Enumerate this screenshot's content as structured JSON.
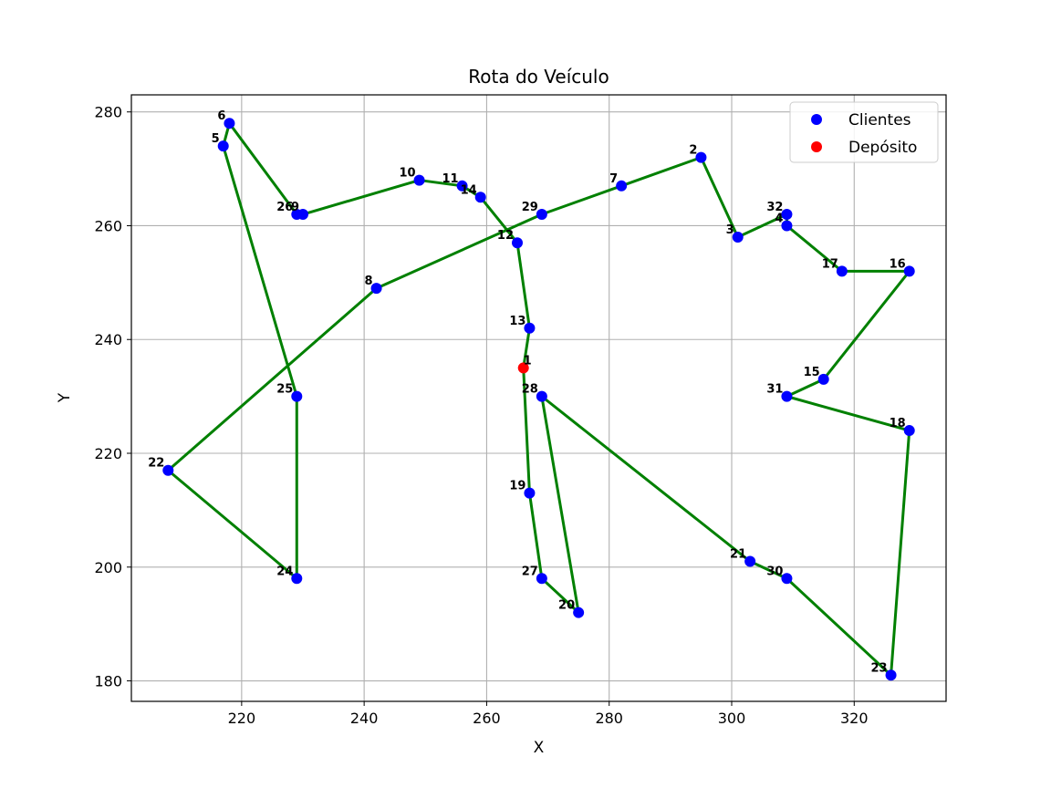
{
  "chart_data": {
    "type": "scatter",
    "title": "Rota do Veículo",
    "xlabel": "X",
    "ylabel": "Y",
    "xlim": [
      202,
      335
    ],
    "ylim": [
      176.4,
      283
    ],
    "xticks": [
      220,
      240,
      260,
      280,
      300,
      320
    ],
    "yticks": [
      180,
      200,
      220,
      240,
      260,
      280
    ],
    "grid": true,
    "legend_position": "top-right",
    "colors": {
      "clientes": "#0000ff",
      "deposito": "#ff0000",
      "route": "#008000",
      "grid": "#b0b0b0"
    },
    "legend": [
      {
        "label": "Clientes",
        "color": "#0000ff"
      },
      {
        "label": "Depósito",
        "color": "#ff0000"
      }
    ],
    "depot": {
      "id": "1",
      "x": 266,
      "y": 235
    },
    "clients": [
      {
        "id": "2",
        "x": 295,
        "y": 272
      },
      {
        "id": "3",
        "x": 301,
        "y": 258
      },
      {
        "id": "4",
        "x": 309,
        "y": 260
      },
      {
        "id": "5",
        "x": 217,
        "y": 274
      },
      {
        "id": "6",
        "x": 218,
        "y": 278
      },
      {
        "id": "7",
        "x": 282,
        "y": 267
      },
      {
        "id": "8",
        "x": 242,
        "y": 249
      },
      {
        "id": "9",
        "x": 230,
        "y": 262
      },
      {
        "id": "10",
        "x": 249,
        "y": 268
      },
      {
        "id": "11",
        "x": 256,
        "y": 267
      },
      {
        "id": "12",
        "x": 265,
        "y": 257
      },
      {
        "id": "13",
        "x": 267,
        "y": 242
      },
      {
        "id": "14",
        "x": 259,
        "y": 265
      },
      {
        "id": "15",
        "x": 315,
        "y": 233
      },
      {
        "id": "16",
        "x": 329,
        "y": 252
      },
      {
        "id": "17",
        "x": 318,
        "y": 252
      },
      {
        "id": "18",
        "x": 329,
        "y": 224
      },
      {
        "id": "19",
        "x": 267,
        "y": 213
      },
      {
        "id": "20",
        "x": 275,
        "y": 192
      },
      {
        "id": "21",
        "x": 303,
        "y": 201
      },
      {
        "id": "22",
        "x": 208,
        "y": 217
      },
      {
        "id": "23",
        "x": 326,
        "y": 181
      },
      {
        "id": "24",
        "x": 229,
        "y": 198
      },
      {
        "id": "25",
        "x": 229,
        "y": 230
      },
      {
        "id": "26",
        "x": 229,
        "y": 262
      },
      {
        "id": "27",
        "x": 269,
        "y": 198
      },
      {
        "id": "28",
        "x": 269,
        "y": 230
      },
      {
        "id": "29",
        "x": 269,
        "y": 262
      },
      {
        "id": "30",
        "x": 309,
        "y": 198
      },
      {
        "id": "31",
        "x": 309,
        "y": 230
      },
      {
        "id": "32",
        "x": 309,
        "y": 262
      }
    ],
    "route": [
      "1",
      "19",
      "27",
      "20",
      "28",
      "21",
      "30",
      "23",
      "18",
      "31",
      "15",
      "16",
      "17",
      "4",
      "32",
      "3",
      "2",
      "7",
      "29",
      "8",
      "22",
      "24",
      "25",
      "5",
      "6",
      "26",
      "9",
      "10",
      "11",
      "14",
      "12",
      "13",
      "1"
    ]
  }
}
